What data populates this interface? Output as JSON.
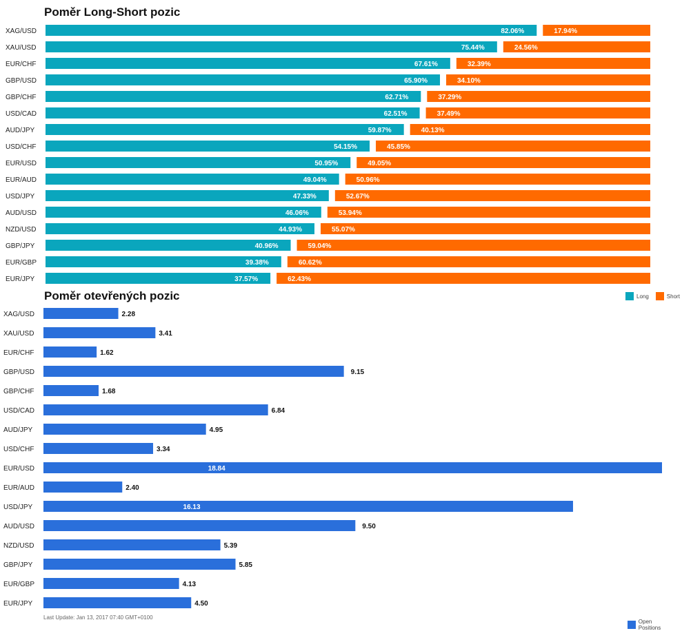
{
  "chart_data": [
    {
      "type": "bar",
      "stacked": true,
      "orientation": "horizontal",
      "title": "Poměr Long-Short pozic",
      "categories": [
        "XAG/USD",
        "XAU/USD",
        "EUR/CHF",
        "GBP/USD",
        "GBP/CHF",
        "USD/CAD",
        "AUD/JPY",
        "USD/CHF",
        "EUR/USD",
        "EUR/AUD",
        "USD/JPY",
        "AUD/USD",
        "NZD/USD",
        "GBP/JPY",
        "EUR/GBP",
        "EUR/JPY"
      ],
      "series": [
        {
          "name": "Long",
          "color": "#0aa6bd",
          "values": [
            82.06,
            75.44,
            67.61,
            65.9,
            62.71,
            62.51,
            59.87,
            54.15,
            50.95,
            49.04,
            47.33,
            46.06,
            44.93,
            40.96,
            39.38,
            37.57
          ],
          "labels": [
            "82.06%",
            "75.44%",
            "67.61%",
            "65.90%",
            "62.71%",
            "62.51%",
            "59.87%",
            "54.15%",
            "50.95%",
            "49.04%",
            "47.33%",
            "46.06%",
            "44.93%",
            "40.96%",
            "39.38%",
            "37.57%"
          ]
        },
        {
          "name": "Short",
          "color": "#ff6a00",
          "values": [
            17.94,
            24.56,
            32.39,
            34.1,
            37.29,
            37.49,
            40.13,
            45.85,
            49.05,
            50.96,
            52.67,
            53.94,
            55.07,
            59.04,
            60.62,
            62.43
          ],
          "labels": [
            "17.94%",
            "24.56%",
            "32.39%",
            "34.10%",
            "37.29%",
            "37.49%",
            "40.13%",
            "45.85%",
            "49.05%",
            "50.96%",
            "52.67%",
            "53.94%",
            "55.07%",
            "59.04%",
            "60.62%",
            "62.43%"
          ]
        }
      ],
      "xlim": [
        0,
        100
      ],
      "legend": "bottom-right"
    },
    {
      "type": "bar",
      "orientation": "horizontal",
      "title": "Poměr otevřených pozic",
      "categories": [
        "XAG/USD",
        "XAU/USD",
        "EUR/CHF",
        "GBP/USD",
        "GBP/CHF",
        "USD/CAD",
        "AUD/JPY",
        "USD/CHF",
        "EUR/USD",
        "EUR/AUD",
        "USD/JPY",
        "AUD/USD",
        "NZD/USD",
        "GBP/JPY",
        "EUR/GBP",
        "EUR/JPY"
      ],
      "series": [
        {
          "name": "Open Positions",
          "color": "#2a6fdb",
          "values": [
            2.28,
            3.41,
            1.62,
            9.15,
            1.68,
            6.84,
            4.95,
            3.34,
            18.84,
            2.4,
            16.13,
            9.5,
            5.39,
            5.85,
            4.13,
            4.5
          ],
          "labels": [
            "2.28",
            "3.41",
            "1.62",
            "9.15",
            "1.68",
            "6.84",
            "4.95",
            "3.34",
            "18.84",
            "2.40",
            "16.13",
            "9.50",
            "5.39",
            "5.85",
            "4.13",
            "4.50"
          ]
        }
      ],
      "xlim": [
        0,
        18.84
      ],
      "legend": "bottom-right"
    }
  ],
  "footer": {
    "last_update": "Last Update: Jan 13, 2017 07:40 GMT+0100"
  }
}
